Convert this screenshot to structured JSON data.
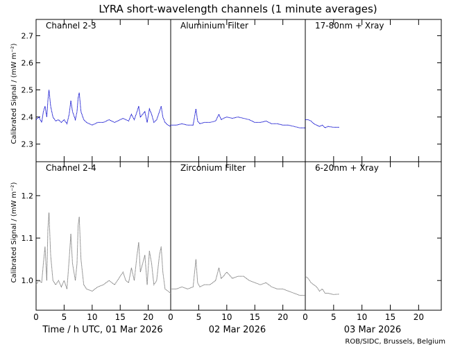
{
  "title": "LYRA short-wavelength channels (1 minute averages)",
  "ylabel_top": "Calibrated Signal / (mW m⁻²)",
  "ylabel_bottom": "Calibrated Signal / (mW m⁻²)",
  "xlabel_day1": "Time / h UTC, 01 Mar 2026",
  "xlabel_day2": "02 Mar 2026",
  "xlabel_day3": "03 Mar 2026",
  "credit": "ROB/SIDC, Brussels, Belgium",
  "colors": {
    "top_series": "#0000cc",
    "bottom_series": "#777777",
    "top_label": "#0000cc",
    "bottom_label": "#888888"
  },
  "chart_data": [
    {
      "type": "scatter",
      "panel": "top",
      "ylim": [
        2.235,
        2.76
      ],
      "yticks": [
        2.3,
        2.4,
        2.5,
        2.6,
        2.7
      ],
      "ytick_labels": [
        "2.3",
        "2.4",
        "2.5",
        "2.6",
        "2.7"
      ],
      "xlim_hours": [
        0,
        24
      ],
      "xticks": [
        0,
        5,
        10,
        15,
        20
      ],
      "xtick_labels": [
        "0",
        "5",
        "10",
        "15",
        "20"
      ],
      "annotations": [
        "Channel 2-3",
        "Aluminium Filter",
        "17-80nm + Xray"
      ],
      "series": [
        {
          "day": 1,
          "x": [
            0,
            0.5,
            1,
            1.3,
            1.6,
            1.9,
            2.1,
            2.3,
            2.6,
            3,
            3.5,
            4,
            4.5,
            5,
            5.5,
            5.9,
            6.2,
            6.5,
            7,
            7.3,
            7.5,
            7.7,
            8,
            8.5,
            9,
            10,
            11,
            12,
            13,
            14,
            15,
            15.5,
            16,
            16.5,
            17,
            17.5,
            18,
            18.3,
            18.6,
            19,
            19.4,
            19.8,
            20.2,
            20.6,
            21,
            21.5,
            22,
            22.3,
            22.6,
            23,
            23.5,
            24
          ],
          "y": [
            2.39,
            2.4,
            2.38,
            2.42,
            2.44,
            2.4,
            2.46,
            2.5,
            2.44,
            2.4,
            2.385,
            2.39,
            2.38,
            2.39,
            2.375,
            2.41,
            2.46,
            2.42,
            2.39,
            2.42,
            2.47,
            2.49,
            2.42,
            2.39,
            2.38,
            2.37,
            2.38,
            2.38,
            2.39,
            2.38,
            2.39,
            2.395,
            2.39,
            2.385,
            2.41,
            2.39,
            2.42,
            2.44,
            2.4,
            2.41,
            2.42,
            2.38,
            2.43,
            2.41,
            2.38,
            2.39,
            2.42,
            2.44,
            2.4,
            2.38,
            2.37,
            2.365
          ]
        },
        {
          "day": 2,
          "x": [
            0,
            1,
            2,
            3,
            4,
            4.5,
            4.8,
            5.2,
            6,
            7,
            8,
            8.6,
            9,
            9.4,
            10,
            11,
            12,
            13,
            14,
            15,
            16,
            17,
            18,
            19,
            20,
            21,
            22,
            23,
            24
          ],
          "y": [
            2.37,
            2.37,
            2.375,
            2.37,
            2.37,
            2.43,
            2.385,
            2.375,
            2.38,
            2.38,
            2.385,
            2.41,
            2.39,
            2.395,
            2.4,
            2.395,
            2.4,
            2.395,
            2.39,
            2.38,
            2.38,
            2.385,
            2.375,
            2.375,
            2.37,
            2.37,
            2.365,
            2.36,
            2.36
          ]
        },
        {
          "day": 3,
          "x": [
            0,
            0.5,
            1,
            1.5,
            2,
            2.5,
            3,
            3.5,
            4,
            5,
            6
          ],
          "y": [
            2.39,
            2.39,
            2.385,
            2.375,
            2.37,
            2.365,
            2.37,
            2.36,
            2.365,
            2.362,
            2.362
          ]
        }
      ]
    },
    {
      "type": "scatter",
      "panel": "bottom",
      "ylim": [
        0.93,
        1.28
      ],
      "yticks": [
        1.0,
        1.1,
        1.2
      ],
      "ytick_labels": [
        "1.0",
        "1.1",
        "1.2"
      ],
      "xlim_hours": [
        0,
        24
      ],
      "xticks": [
        0,
        5,
        10,
        15,
        20
      ],
      "xtick_labels": [
        "0",
        "5",
        "10",
        "15",
        "20"
      ],
      "annotations": [
        "Channel 2-4",
        "Zirconium Filter",
        "6-20nm + Xray"
      ],
      "series": [
        {
          "day": 1,
          "x": [
            0,
            0.5,
            1,
            1.3,
            1.6,
            1.9,
            2.1,
            2.3,
            2.6,
            3,
            3.5,
            4,
            4.5,
            5,
            5.5,
            5.9,
            6.2,
            6.5,
            7,
            7.3,
            7.5,
            7.7,
            8,
            8.5,
            9,
            10,
            11,
            12,
            13,
            14,
            15,
            15.5,
            16,
            16.5,
            17,
            17.5,
            18,
            18.3,
            18.6,
            19,
            19.4,
            19.8,
            20.2,
            20.6,
            21,
            21.5,
            22,
            22.3,
            22.6,
            23,
            23.5,
            24
          ],
          "y": [
            0.99,
            1.0,
            0.995,
            1.04,
            1.08,
            1.0,
            1.12,
            1.16,
            1.06,
            1.0,
            0.99,
            1.0,
            0.985,
            1.0,
            0.98,
            1.05,
            1.11,
            1.04,
            1.0,
            1.04,
            1.13,
            1.15,
            1.05,
            0.99,
            0.98,
            0.975,
            0.985,
            0.99,
            1.0,
            0.99,
            1.01,
            1.02,
            1.0,
            0.995,
            1.03,
            1.0,
            1.06,
            1.09,
            1.02,
            1.04,
            1.06,
            0.99,
            1.07,
            1.04,
            0.99,
            1.0,
            1.06,
            1.08,
            1.02,
            0.98,
            0.975,
            0.97
          ]
        },
        {
          "day": 2,
          "x": [
            0,
            1,
            2,
            3,
            4,
            4.5,
            4.8,
            5.2,
            6,
            7,
            8,
            8.6,
            9,
            9.4,
            10,
            11,
            12,
            13,
            14,
            15,
            16,
            17,
            18,
            19,
            20,
            21,
            22,
            23,
            24
          ],
          "y": [
            0.98,
            0.98,
            0.985,
            0.98,
            0.985,
            1.05,
            0.995,
            0.985,
            0.99,
            0.99,
            1.0,
            1.03,
            1.005,
            1.01,
            1.02,
            1.005,
            1.01,
            1.01,
            1.0,
            0.995,
            0.99,
            0.995,
            0.985,
            0.98,
            0.98,
            0.975,
            0.97,
            0.965,
            0.965
          ]
        },
        {
          "day": 3,
          "x": [
            0,
            0.5,
            1,
            1.5,
            2,
            2.5,
            3,
            3.5,
            4,
            5,
            6
          ],
          "y": [
            1.01,
            1.005,
            0.995,
            0.99,
            0.985,
            0.975,
            0.98,
            0.97,
            0.97,
            0.967,
            0.968
          ]
        }
      ]
    }
  ]
}
